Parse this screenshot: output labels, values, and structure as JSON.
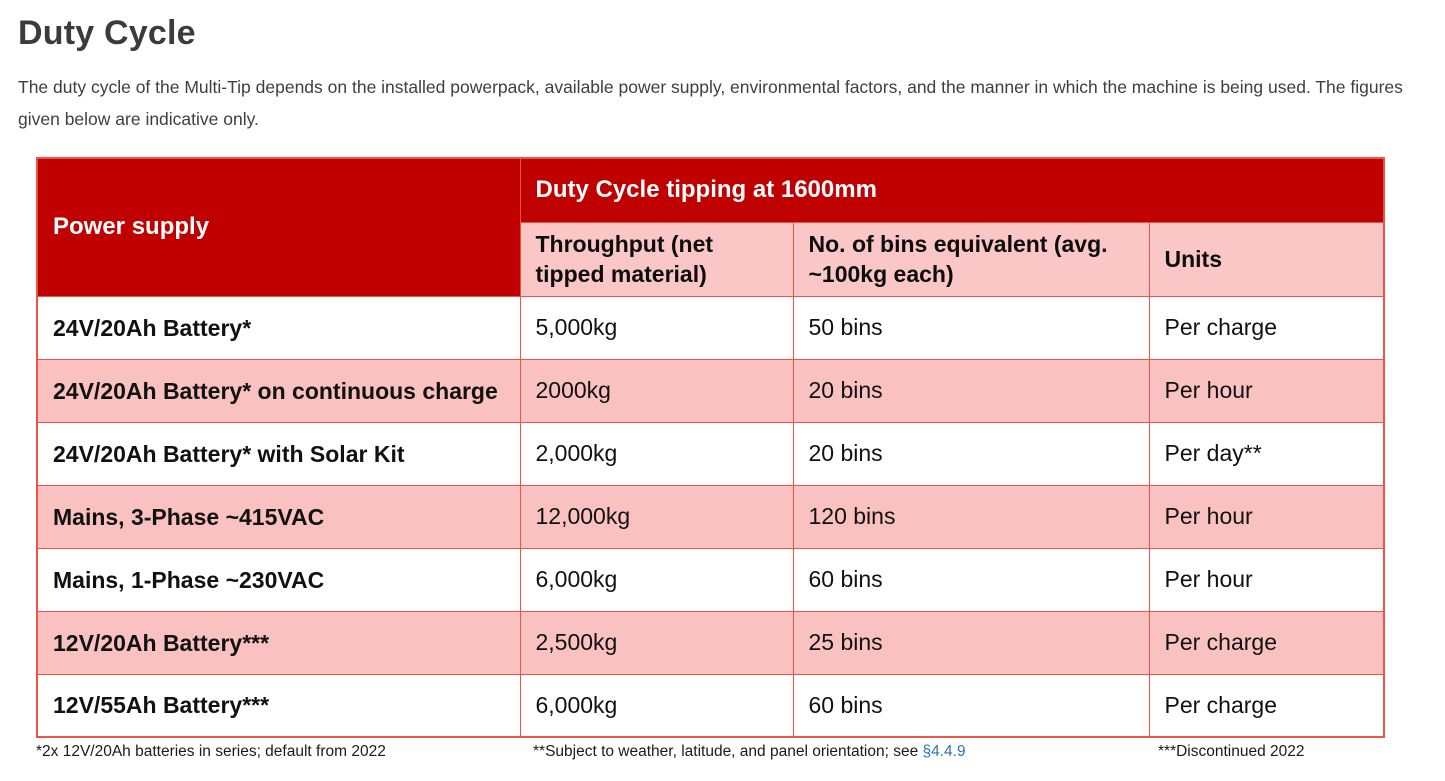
{
  "page": {
    "title": "Duty Cycle",
    "intro": "The duty cycle of the Multi-Tip depends on the installed powerpack, available power supply, environmental factors, and the manner in which the machine is being used. The figures given below are indicative only."
  },
  "table": {
    "corner_header": "Power supply",
    "group_header": "Duty Cycle tipping at 1600mm",
    "sub_headers": [
      "Throughput (net tipped material)",
      "No. of bins equivalent (avg. ~100kg each)",
      "Units"
    ],
    "rows": [
      {
        "power_supply": "24V/20Ah Battery*",
        "throughput": "5,000kg",
        "bins": "50 bins",
        "units": "Per charge"
      },
      {
        "power_supply": "24V/20Ah Battery* on continuous charge",
        "throughput": "2000kg",
        "bins": "20 bins",
        "units": "Per hour"
      },
      {
        "power_supply": "24V/20Ah Battery* with Solar Kit",
        "throughput": "2,000kg",
        "bins": "20 bins",
        "units": "Per day**"
      },
      {
        "power_supply": "Mains, 3-Phase ~415VAC",
        "throughput": "12,000kg",
        "bins": "120 bins",
        "units": "Per hour"
      },
      {
        "power_supply": "Mains, 1-Phase ~230VAC",
        "throughput": "6,000kg",
        "bins": "60 bins",
        "units": "Per hour"
      },
      {
        "power_supply": "12V/20Ah Battery***",
        "throughput": "2,500kg",
        "bins": "25 bins",
        "units": "Per charge"
      },
      {
        "power_supply": "12V/55Ah Battery***",
        "throughput": "6,000kg",
        "bins": "60 bins",
        "units": "Per charge"
      }
    ]
  },
  "footnotes": {
    "note1": "*2x 12V/20Ah batteries in series; default from 2022",
    "note2_prefix": "**Subject to weather, latitude, and panel orientation; see ",
    "note2_link": "§4.4.9",
    "note3": "***Discontinued 2022"
  },
  "colors": {
    "header_red": "#c00000",
    "subheader_pink": "#fbc6c6",
    "row_pink": "#fac1c1",
    "table_border": "#ee5348",
    "link_blue": "#2e74b5",
    "title_gray": "#3b3b3b"
  }
}
